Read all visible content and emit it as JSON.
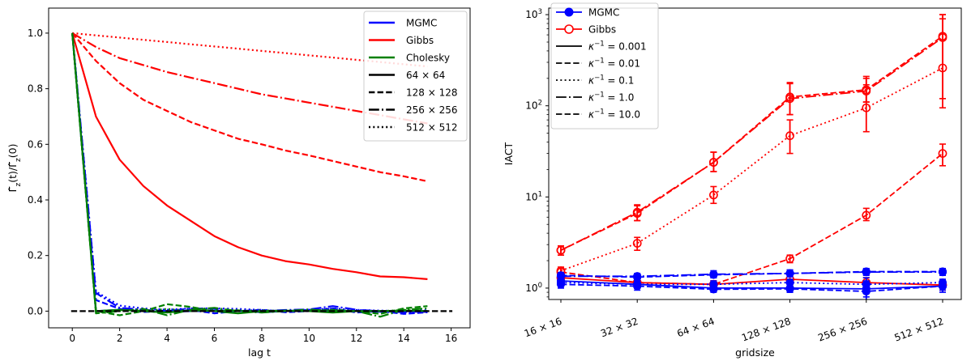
{
  "chart_data": [
    {
      "type": "line",
      "xlabel": "lag $t$",
      "xlabel_text": "lag t",
      "ylabel": "Γ̂_z(t)/Γ̂_z(0)",
      "ylabel_main": "Γ̂",
      "ylabel_sub": "z",
      "ylabel_arg_t": "(t)/",
      "ylabel_arg_0": "(0)",
      "xlim": [
        -1,
        16.8
      ],
      "ylim": [
        -0.06,
        1.09
      ],
      "xticks": [
        0,
        2,
        4,
        6,
        8,
        10,
        12,
        14,
        16
      ],
      "xtick_labels": [
        "0",
        "2",
        "4",
        "6",
        "8",
        "10",
        "12",
        "14",
        "16"
      ],
      "yticks": [
        0.0,
        0.2,
        0.4,
        0.6,
        0.8,
        1.0
      ],
      "ytick_labels": [
        "0.0",
        "0.2",
        "0.4",
        "0.6",
        "0.8",
        "1.0"
      ],
      "grid": false,
      "legend_position": "top-right",
      "legend": [
        {
          "label": "MGMC",
          "color": "#0000ff",
          "dash": "solid"
        },
        {
          "label": "Gibbs",
          "color": "#ff0000",
          "dash": "solid"
        },
        {
          "label": "Cholesky",
          "color": "#008000",
          "dash": "solid"
        },
        {
          "label": "64 × 64",
          "color": "#000000",
          "dash": "solid"
        },
        {
          "label": "128 × 128",
          "color": "#000000",
          "dash": "dashed"
        },
        {
          "label": "256 × 256",
          "color": "#000000",
          "dash": "dashdot"
        },
        {
          "label": "512 × 512",
          "color": "#000000",
          "dash": "dotted"
        }
      ],
      "series": [
        {
          "method": "Gibbs",
          "size": "64 × 64",
          "color": "#ff0000",
          "dash": "solid",
          "x": [
            0,
            1,
            2,
            3,
            4,
            5,
            6,
            7,
            8,
            9,
            10,
            11,
            12,
            13,
            14,
            15
          ],
          "y": [
            1.0,
            0.7,
            0.545,
            0.45,
            0.38,
            0.325,
            0.27,
            0.23,
            0.2,
            0.18,
            0.168,
            0.152,
            0.14,
            0.125,
            0.122,
            0.115
          ]
        },
        {
          "method": "Gibbs",
          "size": "128 × 128",
          "color": "#ff0000",
          "dash": "dashed",
          "x": [
            0,
            1,
            2,
            3,
            4,
            5,
            6,
            7,
            8,
            9,
            10,
            11,
            12,
            13,
            14,
            15
          ],
          "y": [
            1.0,
            0.9,
            0.82,
            0.76,
            0.72,
            0.68,
            0.65,
            0.62,
            0.6,
            0.578,
            0.56,
            0.54,
            0.52,
            0.5,
            0.485,
            0.467
          ]
        },
        {
          "method": "Gibbs",
          "size": "256 × 256",
          "color": "#ff0000",
          "dash": "dashdot",
          "x": [
            0,
            1,
            2,
            3,
            4,
            5,
            6,
            7,
            8,
            9,
            10,
            11,
            12,
            13,
            14,
            15
          ],
          "y": [
            1.0,
            0.95,
            0.91,
            0.885,
            0.86,
            0.84,
            0.82,
            0.8,
            0.78,
            0.765,
            0.75,
            0.735,
            0.72,
            0.705,
            0.69,
            0.675
          ]
        },
        {
          "method": "Gibbs",
          "size": "512 × 512",
          "color": "#ff0000",
          "dash": "dotted",
          "x": [
            0,
            1,
            2,
            3,
            4,
            5,
            6,
            7,
            8,
            9,
            10,
            11,
            12,
            13,
            14,
            15
          ],
          "y": [
            1.0,
            0.992,
            0.984,
            0.976,
            0.968,
            0.96,
            0.952,
            0.944,
            0.936,
            0.928,
            0.92,
            0.912,
            0.904,
            0.896,
            0.888,
            0.88
          ]
        },
        {
          "method": "MGMC",
          "size": "64 × 64",
          "color": "#0000ff",
          "dash": "solid",
          "x": [
            0,
            1,
            2,
            3,
            4,
            5,
            6,
            7,
            8,
            9,
            10,
            11,
            12,
            13,
            14,
            15
          ],
          "y": [
            1.0,
            0.0,
            0.005,
            0.0,
            -0.003,
            0.0,
            0.0,
            0.002,
            -0.004,
            0.0,
            0.003,
            0.0,
            0.0,
            -0.002,
            0.0,
            -0.003
          ]
        },
        {
          "method": "MGMC",
          "size": "128 × 128",
          "color": "#0000ff",
          "dash": "dashed",
          "x": [
            0,
            1,
            2,
            3,
            4,
            5,
            6,
            7,
            8,
            9,
            10,
            11,
            12,
            13,
            14,
            15
          ],
          "y": [
            1.0,
            0.04,
            0.008,
            -0.003,
            0.0,
            0.004,
            -0.008,
            0.0,
            0.005,
            -0.004,
            0.0,
            0.01,
            -0.005,
            0.0,
            -0.01,
            -0.004
          ]
        },
        {
          "method": "MGMC",
          "size": "256 × 256",
          "color": "#0000ff",
          "dash": "dashdot",
          "x": [
            0,
            1,
            2,
            3,
            4,
            5,
            6,
            7,
            8,
            9,
            10,
            11,
            12,
            13,
            14,
            15
          ],
          "y": [
            1.0,
            0.065,
            0.012,
            0.005,
            0.0,
            0.01,
            0.008,
            0.0,
            0.0,
            0.004,
            0.006,
            0.018,
            0.005,
            0.0,
            -0.004,
            0.0
          ]
        },
        {
          "method": "MGMC",
          "size": "512 × 512",
          "color": "#0000ff",
          "dash": "dotted",
          "x": [
            0,
            1,
            2,
            3,
            4,
            5,
            6,
            7,
            8,
            9,
            10,
            11,
            12,
            13,
            14,
            15
          ],
          "y": [
            1.0,
            0.07,
            0.02,
            0.01,
            0.005,
            0.01,
            0.01,
            0.008,
            0.004,
            0.0,
            0.005,
            0.01,
            0.004,
            0.002,
            0.0,
            0.004
          ]
        },
        {
          "method": "Cholesky",
          "size": "64 × 64",
          "color": "#008000",
          "dash": "solid",
          "x": [
            0,
            1,
            2,
            3,
            4,
            5,
            6,
            7,
            8,
            9,
            10,
            11,
            12,
            13,
            14,
            15
          ],
          "y": [
            1.0,
            0.0,
            0.005,
            0.0,
            -0.005,
            0.003,
            0.0,
            -0.008,
            0.0,
            0.002,
            0.0,
            -0.005,
            0.0,
            0.0,
            0.002,
            0.0
          ]
        },
        {
          "method": "Cholesky",
          "size": "128 × 128",
          "color": "#008000",
          "dash": "dashed",
          "x": [
            0,
            1,
            2,
            3,
            4,
            5,
            6,
            7,
            8,
            9,
            10,
            11,
            12,
            13,
            14,
            15
          ],
          "y": [
            1.0,
            0.0,
            -0.015,
            0.0,
            0.025,
            0.015,
            0.0,
            0.003,
            -0.003,
            0.0,
            0.0,
            0.005,
            0.0,
            -0.01,
            0.01,
            0.018
          ]
        },
        {
          "method": "Cholesky",
          "size": "256 × 256",
          "color": "#008000",
          "dash": "dashdot",
          "x": [
            0,
            1,
            2,
            3,
            4,
            5,
            6,
            7,
            8,
            9,
            10,
            11,
            12,
            13,
            14,
            15
          ],
          "y": [
            1.0,
            -0.008,
            0.0,
            0.008,
            -0.015,
            0.005,
            0.012,
            0.0,
            -0.005,
            0.0,
            0.006,
            0.0,
            0.0,
            -0.02,
            0.005,
            0.01
          ]
        },
        {
          "method": "Cholesky",
          "size": "512 × 512",
          "color": "#008000",
          "dash": "dotted",
          "x": [
            0,
            1,
            2,
            3,
            4,
            5,
            6,
            7,
            8,
            9,
            10,
            11,
            12,
            13,
            14,
            15
          ],
          "y": [
            1.0,
            0.0,
            0.004,
            0.0,
            0.008,
            0.0,
            0.004,
            0.0,
            0.003,
            0.0,
            0.0,
            0.004,
            0.0,
            0.0,
            0.004,
            0.0
          ]
        }
      ],
      "reference_line": {
        "y": 0.0,
        "color": "#000000",
        "dash": "dashed"
      }
    },
    {
      "type": "line",
      "xlabel": "gridsize",
      "ylabel": "IACT",
      "yscale": "log",
      "ylim": [
        0.75,
        1180
      ],
      "yticks": [
        1,
        10,
        100,
        1000
      ],
      "ytick_base": "10",
      "ytick_exponents": [
        "0",
        "1",
        "2",
        "3"
      ],
      "categories": [
        "16 × 16",
        "32 × 32",
        "64 × 64",
        "128 × 128",
        "256 × 256",
        "512 × 512"
      ],
      "grid": false,
      "legend_position": "top-left",
      "legend": [
        {
          "label": "MGMC",
          "color": "#0000ff",
          "dash": "solid",
          "marker": "filled-circle"
        },
        {
          "label": "Gibbs",
          "color": "#ff0000",
          "dash": "solid",
          "marker": "open-circle"
        },
        {
          "label": "κ⁻¹ = 0.001",
          "label_prefix": "κ",
          "label_sup": "−1",
          "label_suffix": " = 0.001",
          "color": "#000000",
          "dash": "solid"
        },
        {
          "label": "κ⁻¹ = 0.01",
          "label_prefix": "κ",
          "label_sup": "−1",
          "label_suffix": " = 0.01",
          "color": "#000000",
          "dash": "dashed"
        },
        {
          "label": "κ⁻¹ = 0.1",
          "label_prefix": "κ",
          "label_sup": "−1",
          "label_suffix": " = 0.1",
          "color": "#000000",
          "dash": "dotted"
        },
        {
          "label": "κ⁻¹ = 1.0",
          "label_prefix": "κ",
          "label_sup": "−1",
          "label_suffix": " = 1.0",
          "color": "#000000",
          "dash": "dashdot"
        },
        {
          "label": "κ⁻¹ = 10.0",
          "label_prefix": "κ",
          "label_sup": "−1",
          "label_suffix": " = 10.0",
          "color": "#000000",
          "dash": "dashed"
        }
      ],
      "series": [
        {
          "method": "Gibbs",
          "kappa_inv": "0.001",
          "color": "#ff0000",
          "dash": "solid",
          "marker": "open-circle",
          "y": [
            1.3,
            1.15,
            1.1,
            1.25,
            1.15,
            1.08
          ],
          "err_low": [
            1.2,
            1.0,
            1.0,
            1.1,
            1.0,
            0.95
          ],
          "err_high": [
            1.4,
            1.3,
            1.2,
            1.4,
            1.3,
            1.2
          ]
        },
        {
          "method": "Gibbs",
          "kappa_inv": "0.01",
          "color": "#ff0000",
          "dash": "dashed",
          "marker": "open-circle",
          "y": [
            1.5,
            1.15,
            1.1,
            2.1,
            6.3,
            30
          ],
          "err_low": [
            1.4,
            1.0,
            1.0,
            1.9,
            5.5,
            22
          ],
          "err_high": [
            1.65,
            1.3,
            1.2,
            2.3,
            7.5,
            38
          ]
        },
        {
          "method": "Gibbs",
          "kappa_inv": "0.1",
          "color": "#ff0000",
          "dash": "dotted",
          "marker": "open-circle",
          "y": [
            1.55,
            3.1,
            10.5,
            47,
            95,
            260
          ],
          "err_low": [
            1.4,
            2.6,
            8.5,
            30,
            52,
            95
          ],
          "err_high": [
            1.7,
            3.6,
            13,
            70,
            170,
            900
          ]
        },
        {
          "method": "Gibbs",
          "kappa_inv": "1.0",
          "color": "#ff0000",
          "dash": "dashdot",
          "marker": "open-circle",
          "y": [
            2.6,
            6.8,
            24,
            120,
            145,
            560
          ],
          "err_low": [
            2.3,
            5.5,
            19,
            80,
            110,
            120
          ],
          "err_high": [
            2.9,
            8.2,
            31,
            175,
            200,
            1000
          ]
        },
        {
          "method": "Gibbs",
          "kappa_inv": "10.0",
          "color": "#ff0000",
          "dash": "dashed",
          "marker": "open-circle",
          "y": [
            2.6,
            6.6,
            24,
            125,
            150,
            580
          ],
          "err_low": [
            2.3,
            5.5,
            19,
            80,
            110,
            120
          ],
          "err_high": [
            2.9,
            8.0,
            31,
            180,
            210,
            1000
          ]
        },
        {
          "method": "MGMC",
          "kappa_inv": "0.001",
          "color": "#0000ff",
          "dash": "solid",
          "marker": "filled-circle",
          "y": [
            1.2,
            1.1,
            1.0,
            1.0,
            0.98,
            1.05
          ],
          "err_low": [
            1.1,
            1.0,
            0.92,
            0.9,
            0.72,
            0.9
          ],
          "err_high": [
            1.3,
            1.2,
            1.1,
            1.1,
            1.3,
            1.2
          ]
        },
        {
          "method": "MGMC",
          "kappa_inv": "0.01",
          "color": "#0000ff",
          "dash": "dashed",
          "marker": "filled-circle",
          "y": [
            1.1,
            1.05,
            0.97,
            0.98,
            0.92,
            1.05
          ],
          "err_low": [
            1.0,
            0.95,
            0.9,
            0.9,
            0.8,
            0.95
          ],
          "err_high": [
            1.2,
            1.15,
            1.05,
            1.08,
            1.05,
            1.15
          ]
        },
        {
          "method": "MGMC",
          "kappa_inv": "0.1",
          "color": "#0000ff",
          "dash": "dotted",
          "marker": "filled-circle",
          "y": [
            1.15,
            1.1,
            1.1,
            1.15,
            1.1,
            1.15
          ],
          "err_low": [
            1.05,
            1.0,
            1.0,
            1.05,
            1.0,
            1.05
          ],
          "err_high": [
            1.25,
            1.2,
            1.2,
            1.25,
            1.2,
            1.25
          ]
        },
        {
          "method": "MGMC",
          "kappa_inv": "1.0",
          "color": "#0000ff",
          "dash": "dashdot",
          "marker": "filled-circle",
          "y": [
            1.35,
            1.35,
            1.42,
            1.45,
            1.5,
            1.5
          ],
          "err_low": [
            1.25,
            1.25,
            1.3,
            1.33,
            1.38,
            1.38
          ],
          "err_high": [
            1.45,
            1.45,
            1.55,
            1.58,
            1.62,
            1.62
          ]
        },
        {
          "method": "MGMC",
          "kappa_inv": "10.0",
          "color": "#0000ff",
          "dash": "dashed",
          "marker": "filled-circle",
          "y": [
            1.38,
            1.32,
            1.4,
            1.45,
            1.52,
            1.52
          ],
          "err_low": [
            1.28,
            1.22,
            1.3,
            1.33,
            1.4,
            1.4
          ],
          "err_high": [
            1.48,
            1.42,
            1.5,
            1.58,
            1.64,
            1.64
          ]
        }
      ]
    }
  ]
}
